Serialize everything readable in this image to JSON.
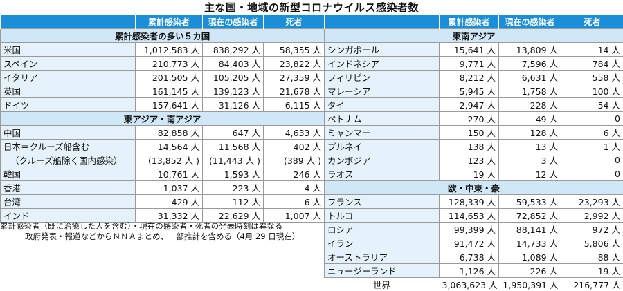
{
  "title": "主な国・地域の新型コロナウイルス感染者数",
  "headers": {
    "cumulative": "累計感染者",
    "current": "現在の感染者",
    "deaths": "死者"
  },
  "left_sections": [
    {
      "title": "累計感染者の多い５カ国",
      "rows": [
        {
          "name": "米国",
          "cum": "1,012,583 人",
          "cur": "838,292 人",
          "dead": "58,355 人"
        },
        {
          "name": "スペイン",
          "cum": "210,773 人",
          "cur": "84,403 人",
          "dead": "23,822 人"
        },
        {
          "name": "イタリア",
          "cum": "201,505 人",
          "cur": "105,205 人",
          "dead": "27,359 人"
        },
        {
          "name": "英国",
          "cum": "161,145 人",
          "cur": "139,123 人",
          "dead": "21,678 人"
        },
        {
          "name": "ドイツ",
          "cum": "157,641 人",
          "cur": "31,126 人",
          "dead": "6,115 人"
        }
      ]
    },
    {
      "title": "東アジア・南アジア",
      "rows": [
        {
          "name": "中国",
          "cum": "82,858 人",
          "cur": "647 人",
          "dead": "4,633 人"
        },
        {
          "name": "日本＝クルーズ船含む",
          "cum": "14,564 人",
          "cur": "11,568 人",
          "dead": "402 人"
        },
        {
          "name": "（クルーズ船除く国内感染）",
          "cum": "(13,852 人 )",
          "cur": "(11,443 人 )",
          "dead": "(389 人 )",
          "indent": true
        },
        {
          "name": "韓国",
          "cum": "10,761 人",
          "cur": "1,593 人",
          "dead": "246 人"
        },
        {
          "name": "香港",
          "cum": "1,037 人",
          "cur": "223 人",
          "dead": "4 人"
        },
        {
          "name": "台湾",
          "cum": "429 人",
          "cur": "112 人",
          "dead": "6 人"
        },
        {
          "name": "インド",
          "cum": "31,332 人",
          "cur": "22,629 人",
          "dead": "1,007 人"
        }
      ]
    }
  ],
  "right_sections": [
    {
      "title": "東南アジア",
      "rows": [
        {
          "name": "シンガポール",
          "cum": "15,641 人",
          "cur": "13,809 人",
          "dead": "14 人"
        },
        {
          "name": "インドネシア",
          "cum": "9,771 人",
          "cur": "7,596 人",
          "dead": "784 人"
        },
        {
          "name": "フィリピン",
          "cum": "8,212 人",
          "cur": "6,631 人",
          "dead": "558 人"
        },
        {
          "name": "マレーシア",
          "cum": "5,945 人",
          "cur": "1,758 人",
          "dead": "100 人"
        },
        {
          "name": "タイ",
          "cum": "2,947 人",
          "cur": "228 人",
          "dead": "54 人"
        },
        {
          "name": "ベトナム",
          "cum": "270 人",
          "cur": "49 人",
          "dead": "0"
        },
        {
          "name": "ミャンマー",
          "cum": "150 人",
          "cur": "128 人",
          "dead": "6 人"
        },
        {
          "name": "ブルネイ",
          "cum": "138 人",
          "cur": "13 人",
          "dead": "1 人"
        },
        {
          "name": "カンボジア",
          "cum": "123 人",
          "cur": "3 人",
          "dead": "0"
        },
        {
          "name": "ラオス",
          "cum": "19 人",
          "cur": "12 人",
          "dead": "0"
        }
      ]
    },
    {
      "title": "欧・中東・豪",
      "rows": [
        {
          "name": "フランス",
          "cum": "128,339 人",
          "cur": "59,533 人",
          "dead": "23,293 人"
        },
        {
          "name": "トルコ",
          "cum": "114,653 人",
          "cur": "72,852 人",
          "dead": "2,992 人"
        },
        {
          "name": "ロシア",
          "cum": "99,399 人",
          "cur": "88,141 人",
          "dead": "972 人"
        },
        {
          "name": "イラン",
          "cum": "91,472 人",
          "cur": "14,733 人",
          "dead": "5,806 人"
        },
        {
          "name": "オーストラリア",
          "cum": "6,738 人",
          "cur": "1,089 人",
          "dead": "88 人"
        },
        {
          "name": "ニュージーランド",
          "cum": "1,126 人",
          "cur": "226 人",
          "dead": "19 人"
        }
      ]
    }
  ],
  "total": {
    "name": "世界",
    "cum": "3,063,623 人",
    "cur": "1,950,391 人",
    "dead": "216,777 人"
  },
  "note_lines": [
    "累計感染者（既に治癒した人を含む）・現在の感染者・死者の発表時刻は異なる",
    "政府発表・報道などからＮＮＡまとめ、一部推計を含める（4月 29 日現在）"
  ]
}
